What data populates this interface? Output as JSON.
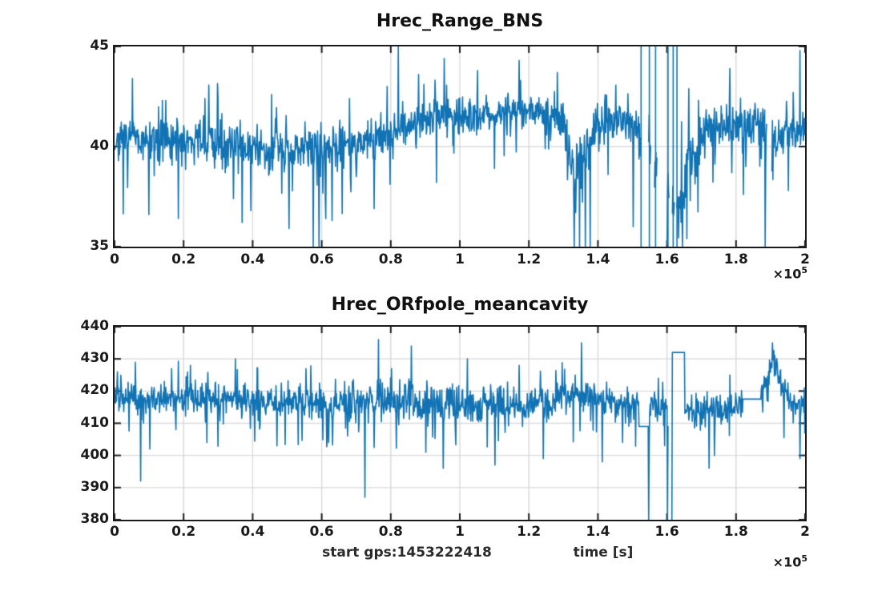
{
  "figure": {
    "background": "#ffffff",
    "line_color": "#1173b4",
    "grid_color": "#d9d9d9",
    "axis_color": "#1a1a1a",
    "offset": {
      "multiplier": "×10",
      "exponent": "5"
    },
    "xlabel": {
      "left": "start gps:1453222418",
      "right": "time [s]"
    }
  },
  "chart_data": [
    {
      "type": "line",
      "title": "Hrec_Range_BNS",
      "xlabel": "",
      "ylabel": "",
      "x_unit": "seconds (axis values ×10^5)",
      "x_display_range": [
        0,
        2
      ],
      "x_ticks": [
        0,
        0.2,
        0.4,
        0.6,
        0.8,
        1,
        1.2,
        1.4,
        1.6,
        1.8,
        2
      ],
      "x_tick_labels": [
        "0",
        "0.2",
        "0.4",
        "0.6",
        "0.8",
        "1",
        "1.2",
        "1.4",
        "1.6",
        "1.8",
        "2"
      ],
      "y_range": [
        35,
        45
      ],
      "y_ticks": [
        35,
        40,
        45
      ],
      "y_tick_labels": [
        "35",
        "40",
        "45"
      ],
      "grid": true,
      "legend": null,
      "seed": 7,
      "step": 0.0014,
      "mean_keypoints": [
        [
          0,
          40.3
        ],
        [
          0.33,
          40.2
        ],
        [
          0.4,
          39.9
        ],
        [
          0.5,
          39.8
        ],
        [
          0.58,
          39.9
        ],
        [
          0.7,
          40.2
        ],
        [
          0.8,
          40.7
        ],
        [
          0.9,
          41.4
        ],
        [
          1.0,
          41.6
        ],
        [
          1.2,
          41.8
        ],
        [
          1.3,
          41.5
        ],
        [
          1.325,
          38.5
        ],
        [
          1.36,
          39.5
        ],
        [
          1.4,
          41.3
        ],
        [
          1.5,
          41.2
        ],
        [
          1.63,
          37.0
        ],
        [
          1.68,
          39.8
        ],
        [
          1.73,
          41.2
        ],
        [
          1.86,
          40.9
        ],
        [
          1.91,
          40.0
        ],
        [
          1.96,
          41.0
        ],
        [
          2.0,
          40.8
        ]
      ],
      "amp_keypoints": [
        [
          0,
          1.15
        ],
        [
          0.45,
          1.3
        ],
        [
          0.75,
          1.15
        ],
        [
          1.0,
          0.95
        ],
        [
          1.28,
          1.0
        ],
        [
          1.33,
          2.4
        ],
        [
          1.38,
          1.1
        ],
        [
          1.55,
          1.2
        ],
        [
          1.64,
          2.2
        ],
        [
          1.72,
          1.15
        ],
        [
          1.95,
          1.5
        ],
        [
          2.0,
          1.3
        ]
      ],
      "spikes": [
        [
          0.052,
          43.4
        ],
        [
          0.1,
          36.6
        ],
        [
          0.148,
          42.3
        ],
        [
          0.185,
          36.4
        ],
        [
          0.262,
          42.4
        ],
        [
          0.3,
          42.5
        ],
        [
          0.345,
          37.4
        ],
        [
          0.37,
          36.2
        ],
        [
          0.395,
          36.8
        ],
        [
          0.455,
          42.6
        ],
        [
          0.505,
          35.9
        ],
        [
          0.575,
          35
        ],
        [
          0.592,
          35
        ],
        [
          0.63,
          36.3
        ],
        [
          0.68,
          42.4
        ],
        [
          0.752,
          36.9
        ],
        [
          0.79,
          43.0
        ],
        [
          0.822,
          45
        ],
        [
          0.88,
          43.6
        ],
        [
          0.932,
          38.2
        ],
        [
          0.955,
          44.4
        ],
        [
          1.052,
          43.8
        ],
        [
          1.1,
          38.9
        ],
        [
          1.172,
          44.3
        ],
        [
          1.282,
          43.7
        ],
        [
          1.332,
          35
        ],
        [
          1.347,
          35
        ],
        [
          1.363,
          35
        ],
        [
          1.378,
          35
        ],
        [
          1.43,
          38.6
        ],
        [
          1.502,
          36.0
        ],
        [
          1.645,
          35
        ],
        [
          1.658,
          35.4
        ],
        [
          1.782,
          43.9
        ],
        [
          1.822,
          37.6
        ],
        [
          1.884,
          35
        ],
        [
          1.952,
          37.8
        ],
        [
          1.985,
          44.8
        ]
      ],
      "flats": [],
      "gaps": [
        [
          1.527,
          1.546
        ],
        [
          1.553,
          1.563
        ],
        [
          1.571,
          1.599
        ],
        [
          1.607,
          1.615
        ],
        [
          1.622,
          1.627
        ],
        [
          1.889,
          1.903
        ]
      ],
      "vlines": [
        1.525,
        1.549,
        1.567,
        1.603,
        1.618,
        1.629
      ]
    },
    {
      "type": "line",
      "title": "Hrec_ORfpole_meancavity",
      "xlabel": "start gps:1453222418        time [s]",
      "ylabel": "",
      "x_unit": "seconds (axis values ×10^5)",
      "x_display_range": [
        0,
        2
      ],
      "x_ticks": [
        0,
        0.2,
        0.4,
        0.6,
        0.8,
        1,
        1.2,
        1.4,
        1.6,
        1.8,
        2
      ],
      "x_tick_labels": [
        "0",
        "0.2",
        "0.4",
        "0.6",
        "0.8",
        "1",
        "1.2",
        "1.4",
        "1.6",
        "1.8",
        "2"
      ],
      "y_range": [
        380,
        440
      ],
      "y_ticks": [
        380,
        390,
        400,
        410,
        420,
        430,
        440
      ],
      "y_tick_labels": [
        "380",
        "390",
        "400",
        "410",
        "420",
        "430",
        "440"
      ],
      "grid": true,
      "legend": null,
      "seed": 21,
      "step": 0.0014,
      "mean_keypoints": [
        [
          0,
          418
        ],
        [
          0.3,
          417.5
        ],
        [
          0.55,
          416.5
        ],
        [
          0.72,
          415.5
        ],
        [
          0.8,
          417.5
        ],
        [
          0.95,
          415.5
        ],
        [
          1.1,
          416
        ],
        [
          1.28,
          417
        ],
        [
          1.33,
          419
        ],
        [
          1.42,
          417
        ],
        [
          1.5,
          415
        ],
        [
          1.56,
          415.5
        ],
        [
          1.6,
          415
        ],
        [
          1.66,
          414
        ],
        [
          1.78,
          413.5
        ],
        [
          1.875,
          420
        ],
        [
          1.905,
          429
        ],
        [
          1.935,
          421
        ],
        [
          1.97,
          413.5
        ],
        [
          2.0,
          416
        ]
      ],
      "amp_keypoints": [
        [
          0,
          5.5
        ],
        [
          0.6,
          5.8
        ],
        [
          0.9,
          6.5
        ],
        [
          1.2,
          6.2
        ],
        [
          1.45,
          5.2
        ],
        [
          1.56,
          5.8
        ],
        [
          1.61,
          5.5
        ],
        [
          1.67,
          5.8
        ],
        [
          1.8,
          5.2
        ],
        [
          1.88,
          4.5
        ],
        [
          1.93,
          5.5
        ],
        [
          2.0,
          6.0
        ]
      ],
      "spikes": [
        [
          0.008,
          426
        ],
        [
          0.06,
          429
        ],
        [
          0.075,
          392
        ],
        [
          0.102,
          402
        ],
        [
          0.165,
          427
        ],
        [
          0.22,
          428
        ],
        [
          0.268,
          404
        ],
        [
          0.35,
          430
        ],
        [
          0.415,
          427
        ],
        [
          0.47,
          403
        ],
        [
          0.555,
          427
        ],
        [
          0.62,
          404
        ],
        [
          0.725,
          387
        ],
        [
          0.765,
          436
        ],
        [
          0.802,
          427
        ],
        [
          0.86,
          434
        ],
        [
          0.902,
          401
        ],
        [
          0.952,
          396
        ],
        [
          1.022,
          430
        ],
        [
          1.102,
          397
        ],
        [
          1.172,
          428
        ],
        [
          1.242,
          399
        ],
        [
          1.352,
          435
        ],
        [
          1.412,
          398
        ],
        [
          1.472,
          404
        ],
        [
          1.5465,
          380
        ],
        [
          1.575,
          424
        ],
        [
          1.602,
          380
        ],
        [
          1.6142,
          380
        ],
        [
          1.722,
          396
        ],
        [
          1.782,
          425
        ],
        [
          1.905,
          435
        ],
        [
          1.985,
          399
        ],
        [
          1.998,
          421
        ]
      ],
      "flats": [
        [
          1.518,
          1.546,
          409
        ],
        [
          1.615,
          1.652,
          432
        ],
        [
          1.82,
          1.872,
          417.5
        ]
      ],
      "gaps": [
        [
          1.604,
          1.613
        ]
      ],
      "vlines": []
    }
  ],
  "layout_note": "two stacked time-series subplots, MATLAB style, grid on"
}
